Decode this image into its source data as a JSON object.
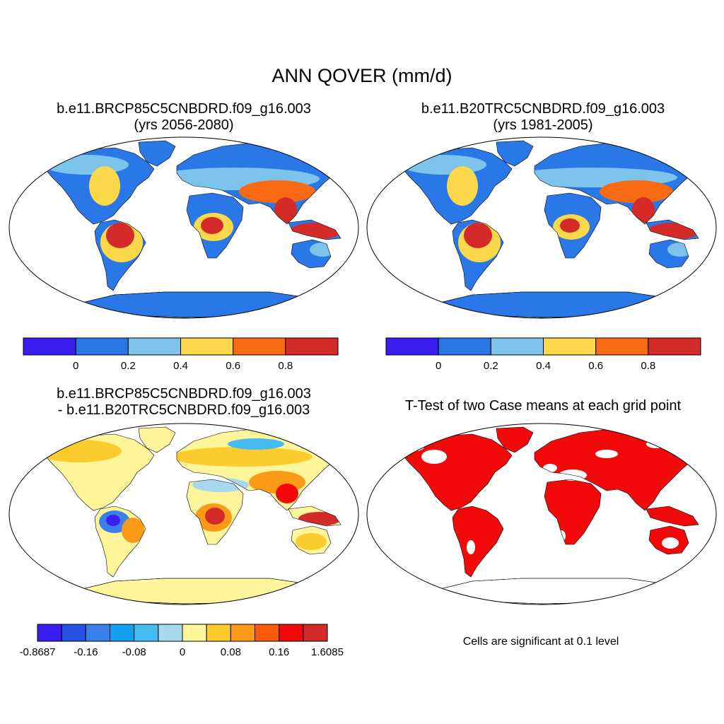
{
  "figure": {
    "main_title": "ANN QOVER (mm/d)",
    "panels": [
      {
        "id": "case",
        "title_line1": "b.e11.BRCP85C5CNBDRD.f09_g16.003",
        "title_line2": "(yrs 2056-2080)"
      },
      {
        "id": "control",
        "title_line1": "b.e11.B20TRC5CNBDRD.f09_g16.003",
        "title_line2": "(yrs 1981-2005)"
      },
      {
        "id": "difference",
        "title_line1": "b.e11.BRCP85C5CNBDRD.f09_g16.003",
        "title_line2": "- b.e11.B20TRC5CNBDRD.f09_g16.003"
      },
      {
        "id": "ttest",
        "title_line1": "T-Test of two Case means at each grid point",
        "note": "Cells are significant at 0.1 level"
      }
    ]
  },
  "colorbar_abs": {
    "colors": [
      "#3a1ef0",
      "#2a78e8",
      "#7cc4ec",
      "#fbd84a",
      "#fa6a12",
      "#d42a2a"
    ],
    "tick_labels": [
      "0",
      "0.2",
      "0.4",
      "0.6",
      "0.8"
    ]
  },
  "colorbar_diff": {
    "colors": [
      "#3a1ef0",
      "#2852e6",
      "#3a80ea",
      "#14a0f2",
      "#44bcf2",
      "#a8d8ee",
      "#fff59a",
      "#fccc2e",
      "#fa9a16",
      "#fa5a0c",
      "#f20a0a",
      "#d42a2a"
    ],
    "tick_labels": [
      "-0.8687",
      "-0.16",
      "-0.08",
      "0",
      "0.08",
      "0.16",
      "1.6085"
    ]
  },
  "map_colors": {
    "ocean": "#ffffff",
    "land_low": "#2a78e8",
    "land_mid": "#7cc4ec",
    "land_high": "#fbd84a",
    "land_higher": "#fa6a12",
    "land_top": "#d42a2a",
    "diff_base": "#fff59a",
    "sig": "#f20a0a"
  }
}
